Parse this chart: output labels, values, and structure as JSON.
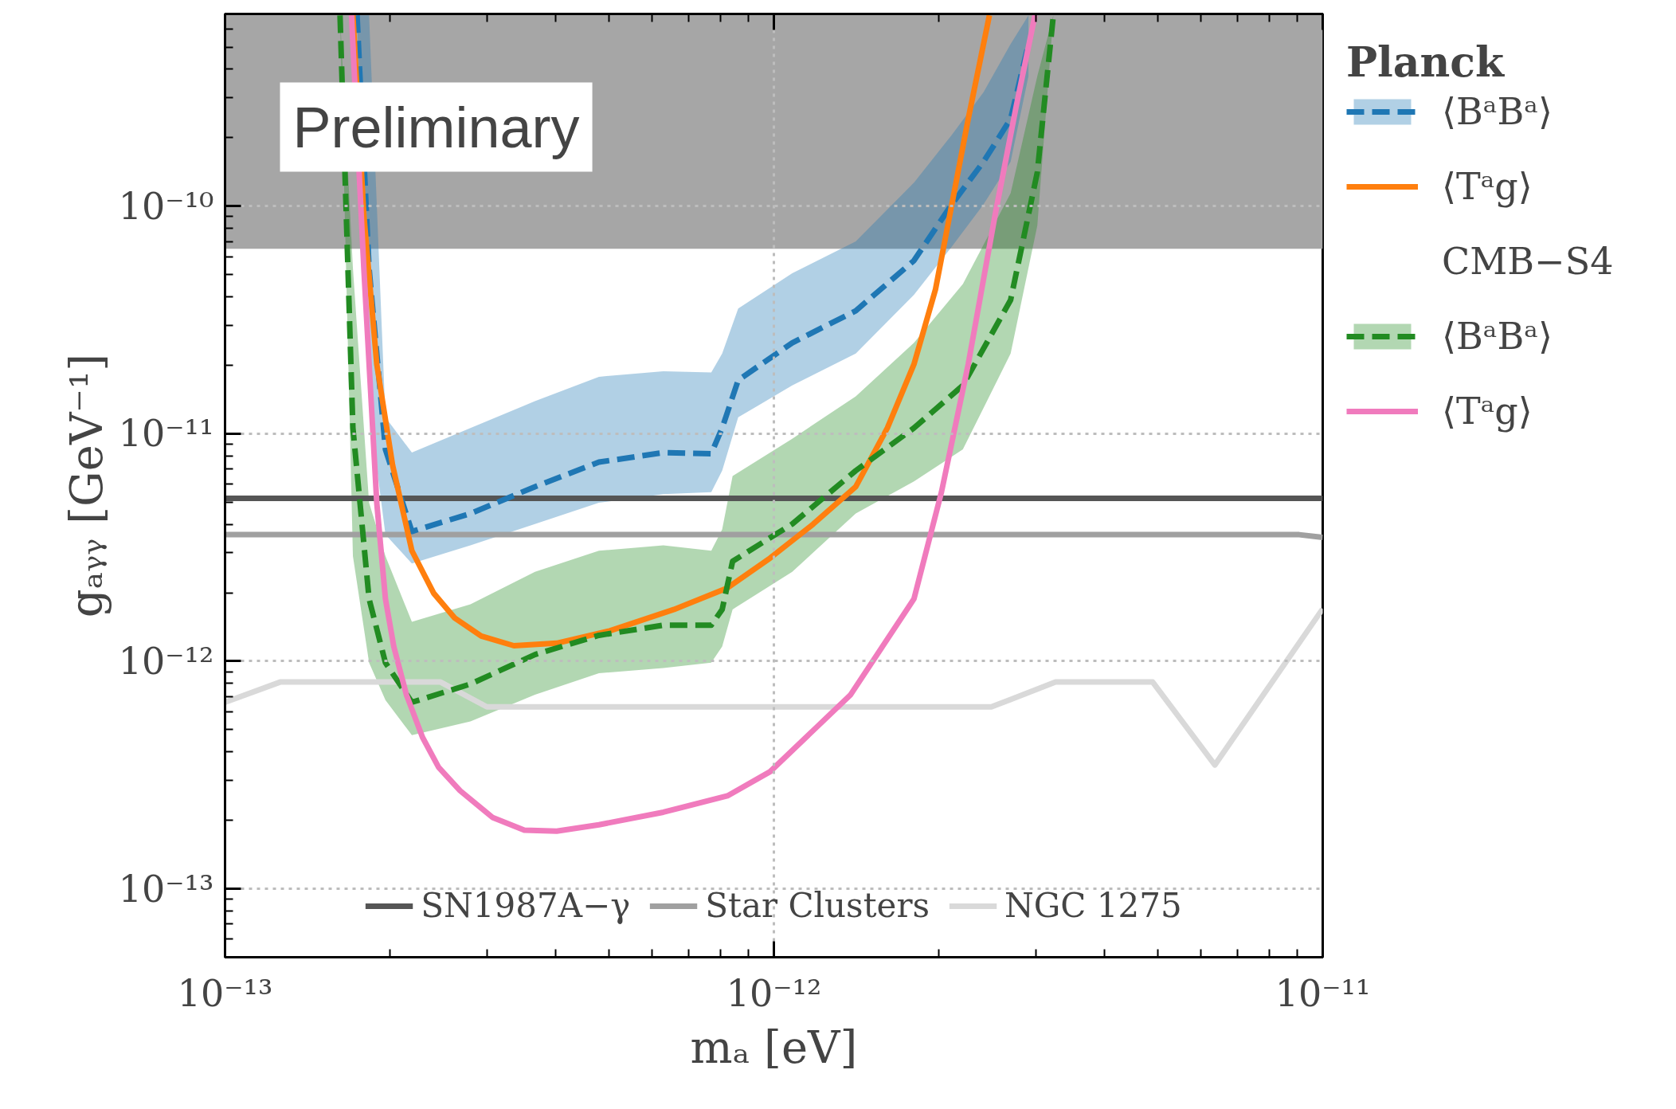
{
  "chart_data": {
    "type": "line",
    "xlabel": "mₐ [eV]",
    "ylabel": "gₐᵧᵧ [GeV⁻¹]",
    "log": "xy",
    "grid": true,
    "legend": "bottom",
    "xlim": [
      1e-13,
      1e-11
    ],
    "ylim": [
      5e-14,
      7e-10
    ],
    "xticks": [
      {
        "value": 1e-13,
        "label": "10⁻¹³"
      },
      {
        "value": 1e-12,
        "label": "10⁻¹²"
      },
      {
        "value": 1e-11,
        "label": "10⁻¹¹"
      }
    ],
    "yticks": [
      {
        "value": 1e-13,
        "label": "10⁻¹³"
      },
      {
        "value": 1e-12,
        "label": "10⁻¹²"
      },
      {
        "value": 1e-11,
        "label": "10⁻¹¹"
      },
      {
        "value": 1e-10,
        "label": "10⁻¹⁰"
      }
    ],
    "annotations": [
      "Preliminary",
      "Planck",
      "CMB−S4"
    ],
    "bands": [
      {
        "axis": "y",
        "from": 6.5e-11,
        "to": 7e-10,
        "color": "#a6a6a6"
      }
    ],
    "series": [
      {
        "name": "SN1987A−γ",
        "color": "#555555",
        "line_style": "solid",
        "x": [
          1e-13,
          1e-11
        ],
        "values": [
          5.2e-12,
          5.2e-12
        ]
      },
      {
        "name": "Star Clusters",
        "color": "#a0a0a0",
        "line_style": "solid",
        "x": [
          1e-13,
          9.06e-12,
          1e-11
        ],
        "values": [
          3.6e-12,
          3.6e-12,
          3.5e-12
        ]
      },
      {
        "name": "NGC 1275",
        "color": "#d9d9d9",
        "line_style": "solid",
        "x": [
          1e-13,
          1.26e-13,
          2.47e-13,
          3e-13,
          2.49e-12,
          3.26e-12,
          4.9e-12,
          6.36e-12,
          1e-11
        ],
        "values": [
          6.6e-13,
          8.1e-13,
          8.1e-13,
          6.3e-13,
          6.3e-13,
          8.1e-13,
          8.1e-13,
          3.5e-13,
          1.7e-12
        ]
      },
      {
        "name": "⟨BᵃBᵃ⟩",
        "color": "#1f77b4",
        "line_style": "dashed",
        "x": [
          1.74e-13,
          1.83e-13,
          1.96e-13,
          2.19e-13,
          2.8e-13,
          3.67e-13,
          4.8e-13,
          6.29e-13,
          7.69e-13,
          8.05e-13,
          8.61e-13,
          1.08e-12,
          1.41e-12,
          1.8e-12,
          2.11e-12,
          2.41e-12,
          2.7e-12,
          2.91e-12
        ],
        "values": [
          6.9e-10,
          5.35e-11,
          8.53e-12,
          3.72e-12,
          4.46e-12,
          5.85e-12,
          7.5e-12,
          8.26e-12,
          8.17e-12,
          1.06e-11,
          1.72e-11,
          2.51e-11,
          3.47e-11,
          5.77e-11,
          1.02e-10,
          1.57e-10,
          2.42e-10,
          5.16e-10
        ],
        "upper": [
          6.9e-10,
          6.9e-10,
          1.18e-11,
          8.26e-12,
          1.06e-11,
          1.39e-11,
          1.78e-11,
          1.88e-11,
          1.86e-11,
          2.25e-11,
          3.55e-11,
          5.07e-11,
          7e-11,
          1.27e-10,
          2.06e-10,
          3.17e-10,
          5.16e-10,
          6.9e-10
        ],
        "lower": [
          6.9e-10,
          1.31e-11,
          3.6e-12,
          2.69e-12,
          3.23e-12,
          4.01e-12,
          4.97e-12,
          5.42e-12,
          5.54e-12,
          6.88e-12,
          1.18e-11,
          1.63e-11,
          2.25e-11,
          4.08e-11,
          6.64e-11,
          1.02e-10,
          1.57e-10,
          3.73e-10
        ]
      },
      {
        "name": "⟨Tᵃg⟩",
        "color": "#ff7f0e",
        "line_style": "solid",
        "x": [
          1.71e-13,
          1.79e-13,
          1.89e-13,
          2.02e-13,
          2.19e-13,
          2.4e-13,
          2.62e-13,
          2.93e-13,
          3.36e-13,
          4.02e-13,
          5.02e-13,
          6.58e-13,
          8.23e-13,
          9.84e-13,
          1.18e-12,
          1.41e-12,
          1.61e-12,
          1.8e-12,
          1.97e-12,
          2.11e-12,
          2.26e-12,
          2.47e-12
        ],
        "values": [
          6.9e-10,
          9.17e-11,
          2.02e-11,
          7.26e-12,
          3.06e-12,
          1.99e-12,
          1.55e-12,
          1.29e-12,
          1.17e-12,
          1.2e-12,
          1.36e-12,
          1.69e-12,
          2.1e-12,
          2.84e-12,
          4.01e-12,
          5.85e-12,
          1.06e-11,
          2.02e-11,
          4.31e-11,
          1.02e-10,
          2.42e-10,
          6.9e-10
        ]
      },
      {
        "name": "⟨BᵃBᵃ⟩",
        "color": "#228b22",
        "line_style": "dashed",
        "x": [
          1.62e-13,
          1.71e-13,
          1.83e-13,
          1.96e-13,
          2.19e-13,
          2.8e-13,
          3.67e-13,
          4.8e-13,
          6.29e-13,
          7.69e-13,
          8.05e-13,
          8.41e-13,
          1.08e-12,
          1.41e-12,
          1.8e-12,
          2.21e-12,
          2.7e-12,
          3.02e-12,
          3.23e-12
        ],
        "values": [
          6.9e-10,
          1.06e-11,
          1.88e-12,
          9.85e-13,
          6.6e-13,
          7.94e-13,
          1.07e-12,
          1.3e-12,
          1.44e-12,
          1.44e-12,
          1.69e-12,
          2.75e-12,
          4.01e-12,
          6.88e-12,
          1.06e-11,
          1.63e-11,
          3.87e-11,
          1.41e-10,
          6.9e-10
        ],
        "upper": [
          6.9e-10,
          5.35e-11,
          4.97e-12,
          2.9e-12,
          1.49e-12,
          1.78e-12,
          2.47e-12,
          3.06e-12,
          3.23e-12,
          3.06e-12,
          3.8e-12,
          6.52e-12,
          9.51e-12,
          1.46e-11,
          2.51e-11,
          4.55e-11,
          1.14e-10,
          3.73e-10,
          6.9e-10
        ],
        "lower": [
          6.9e-10,
          2.9e-12,
          9.85e-13,
          6.75e-13,
          4.73e-13,
          5.44e-13,
          7.13e-13,
          8.85e-13,
          9.34e-13,
          9.85e-13,
          1.16e-12,
          1.69e-12,
          2.47e-12,
          4.46e-12,
          6.17e-12,
          8.53e-12,
          2.25e-11,
          8.23e-11,
          6.9e-10
        ]
      },
      {
        "name": "⟨Tᵃg⟩",
        "color": "#f07bbd",
        "line_style": "solid",
        "x": [
          1.7e-13,
          1.79e-13,
          1.89e-13,
          1.96e-13,
          2.03e-13,
          2.14e-13,
          2.29e-13,
          2.45e-13,
          2.68e-13,
          3.07e-13,
          3.51e-13,
          4.02e-13,
          4.8e-13,
          6.29e-13,
          8.23e-13,
          9.84e-13,
          1.38e-12,
          1.8e-12,
          2.02e-12,
          2.26e-12,
          2.53e-12,
          2.76e-12,
          2.99e-12
        ],
        "values": [
          6.9e-10,
          5.35e-11,
          4.97e-12,
          1.88e-12,
          1.16e-12,
          7.13e-13,
          4.63e-13,
          3.42e-13,
          2.7e-13,
          2.06e-13,
          1.81e-13,
          1.79e-13,
          1.91e-13,
          2.17e-13,
          2.56e-13,
          3.27e-13,
          7.13e-13,
          1.88e-12,
          5.54e-12,
          2.02e-11,
          9.17e-11,
          2.7e-10,
          6.9e-10
        ]
      }
    ]
  }
}
